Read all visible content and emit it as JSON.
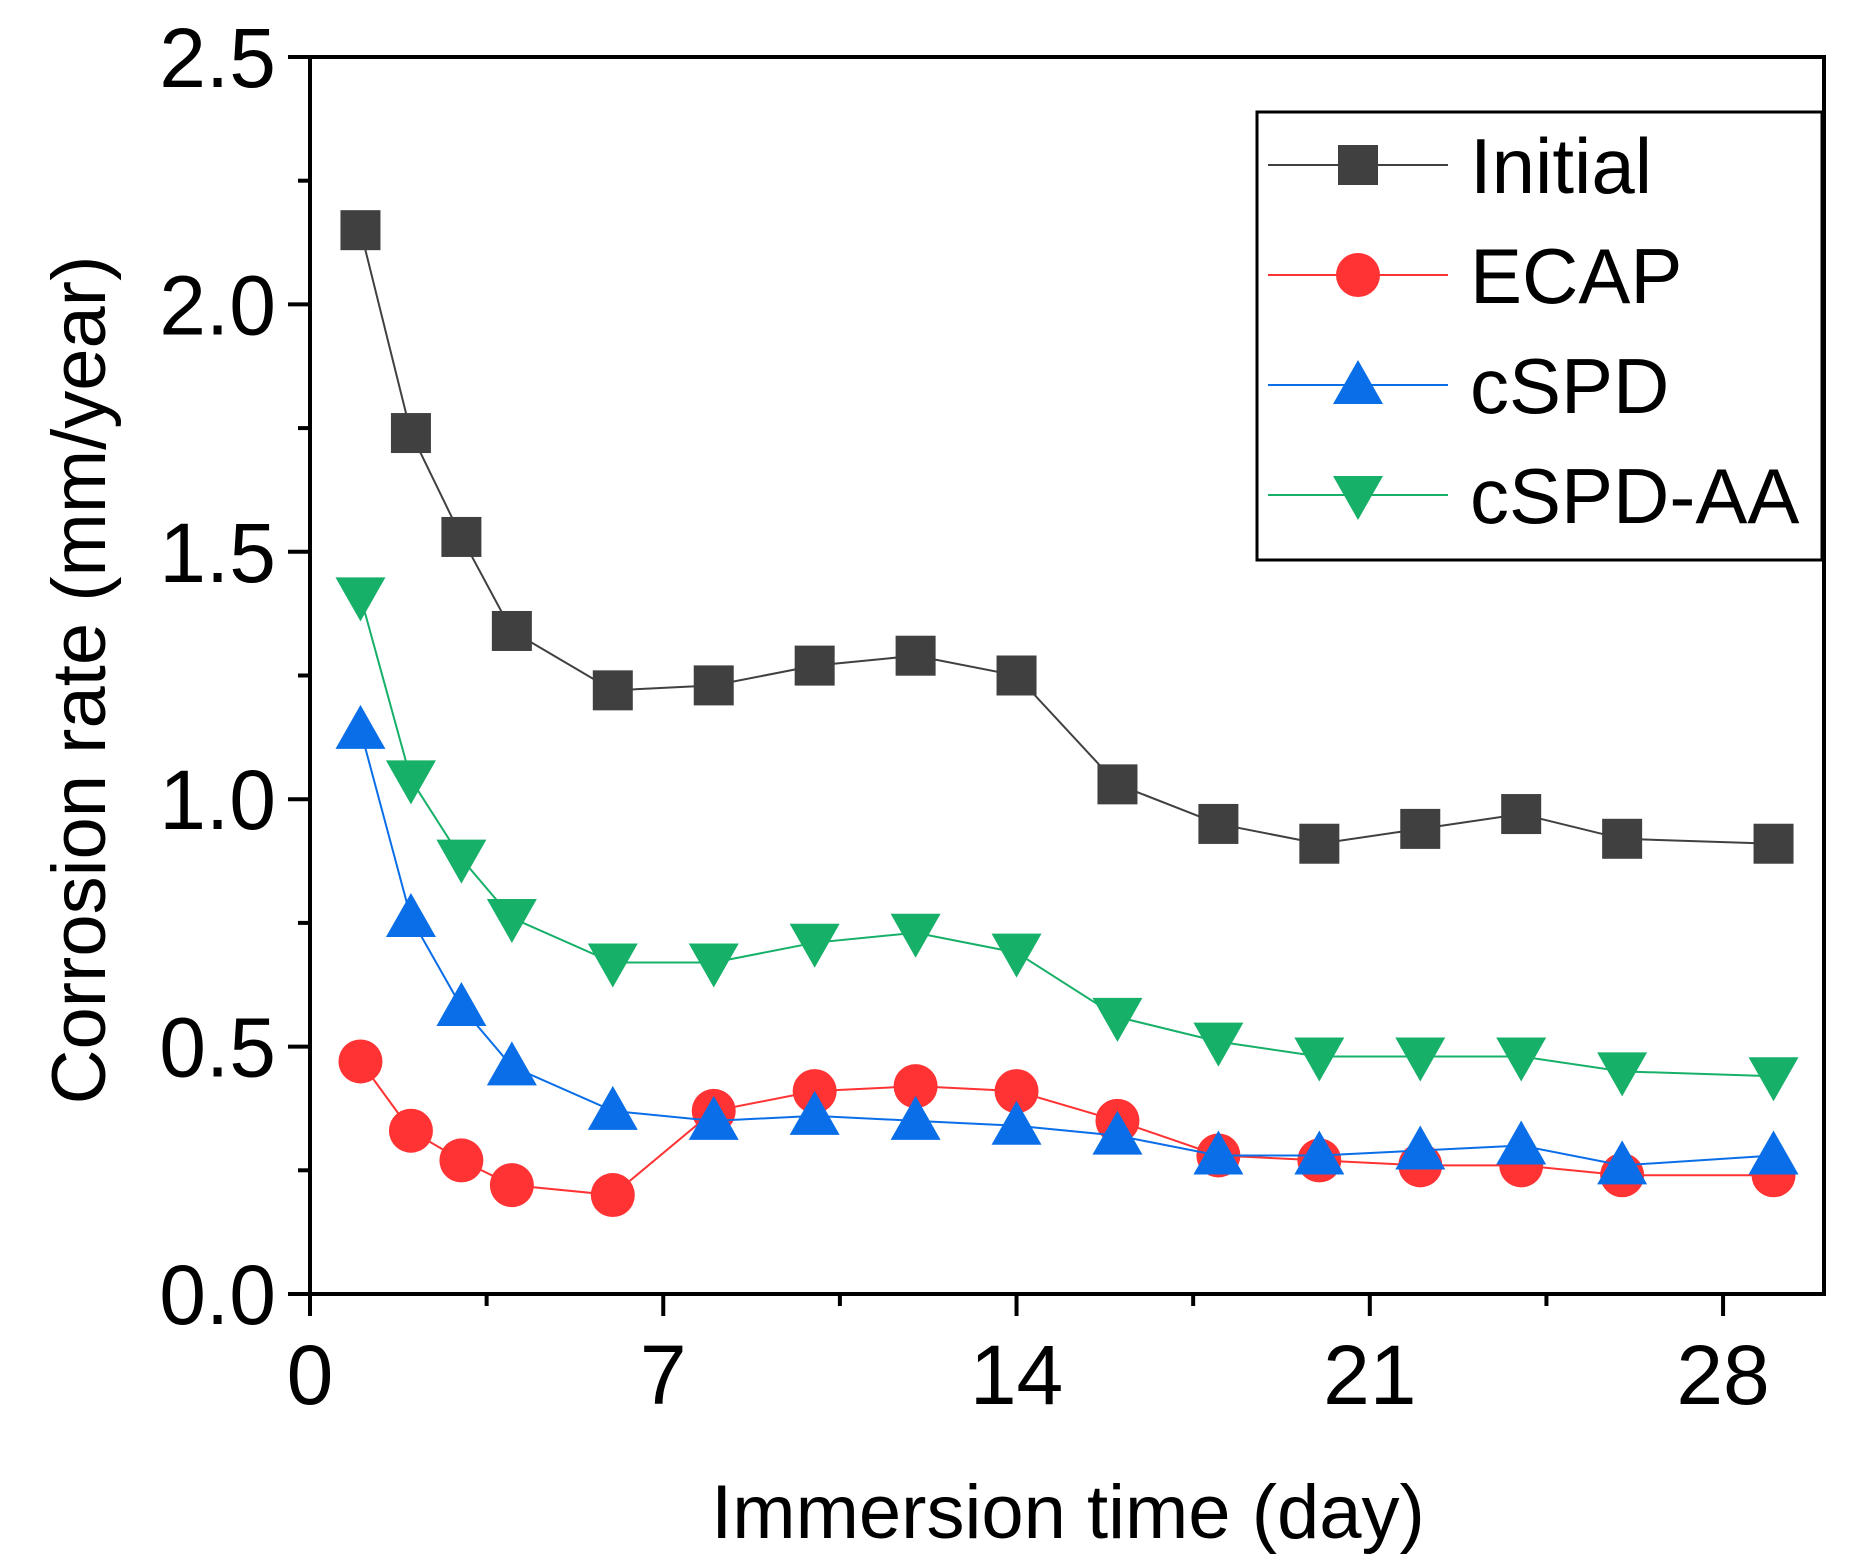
{
  "chart_data": {
    "type": "line",
    "title": "",
    "xlabel": "Immersion time (day)",
    "ylabel": "Corrosion rate (mm/year)",
    "xlim": [
      0,
      30
    ],
    "ylim": [
      0,
      2.5
    ],
    "xticks": [
      0,
      7,
      14,
      21,
      28
    ],
    "yticks": [
      0.0,
      0.5,
      1.0,
      1.5,
      2.0,
      2.5
    ],
    "xtick_labels": [
      "0",
      "7",
      "14",
      "21",
      "28"
    ],
    "ytick_labels": [
      "0.0",
      "0.5",
      "1.0",
      "1.5",
      "2.0",
      "2.5"
    ],
    "grid": false,
    "legend_position": "top-right",
    "series": [
      {
        "name": "Initial",
        "color": "#404040",
        "marker": "square",
        "x": [
          1,
          2,
          3,
          4,
          6,
          8,
          10,
          12,
          14,
          16,
          18,
          20,
          22,
          24,
          26,
          29
        ],
        "values": [
          2.15,
          1.74,
          1.53,
          1.34,
          1.22,
          1.23,
          1.27,
          1.29,
          1.25,
          1.03,
          0.95,
          0.91,
          0.94,
          0.97,
          0.92,
          0.91
        ]
      },
      {
        "name": "ECAP",
        "color": "#ff3333",
        "marker": "circle",
        "x": [
          1,
          2,
          3,
          4,
          6,
          8,
          10,
          12,
          14,
          16,
          18,
          20,
          22,
          24,
          26,
          29
        ],
        "values": [
          0.47,
          0.33,
          0.27,
          0.22,
          0.2,
          0.37,
          0.41,
          0.42,
          0.41,
          0.35,
          0.28,
          0.27,
          0.26,
          0.26,
          0.24,
          0.24
        ]
      },
      {
        "name": "cSPD",
        "color": "#0a6ee8",
        "marker": "triangle-up",
        "x": [
          1,
          2,
          3,
          4,
          6,
          8,
          10,
          12,
          14,
          16,
          18,
          20,
          22,
          24,
          26,
          29
        ],
        "values": [
          1.14,
          0.76,
          0.58,
          0.46,
          0.37,
          0.35,
          0.36,
          0.35,
          0.34,
          0.32,
          0.28,
          0.28,
          0.29,
          0.3,
          0.26,
          0.28
        ]
      },
      {
        "name": "cSPD-AA",
        "color": "#16b068",
        "marker": "triangle-down",
        "x": [
          1,
          2,
          3,
          4,
          6,
          8,
          10,
          12,
          14,
          16,
          18,
          20,
          22,
          24,
          26,
          29
        ],
        "values": [
          1.41,
          1.04,
          0.88,
          0.76,
          0.67,
          0.67,
          0.71,
          0.73,
          0.69,
          0.56,
          0.51,
          0.48,
          0.48,
          0.48,
          0.45,
          0.44
        ]
      }
    ]
  }
}
